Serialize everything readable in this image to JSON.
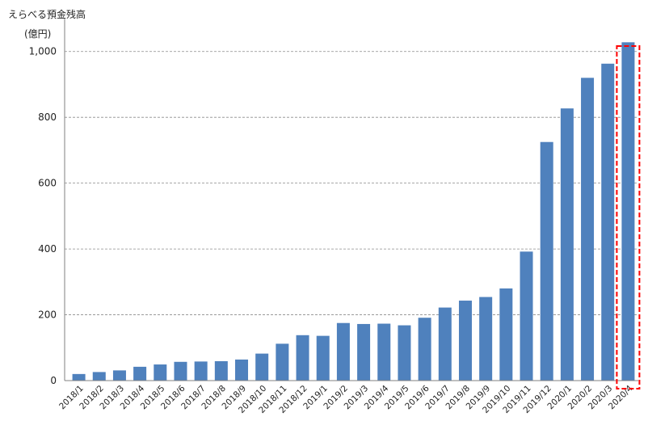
{
  "chart_data": {
    "type": "bar",
    "title": "",
    "ylabel": "えらべる預金残高",
    "yunit": "(億円)",
    "xlabel": "",
    "ylim": [
      0,
      1100
    ],
    "yticks": [
      0,
      200,
      400,
      600,
      800,
      1000
    ],
    "ytick_labels": [
      "0",
      "200",
      "400",
      "600",
      "800",
      "1,000"
    ],
    "grid": "horizontal dashed",
    "bar_color": "#4f81bd",
    "highlight_color": "#ff0000",
    "highlight_category": "2020/4",
    "categories": [
      "2018/1",
      "2018/2",
      "2018/3",
      "2018/4",
      "2018/5",
      "2018/6",
      "2018/7",
      "2018/8",
      "2018/9",
      "2018/10",
      "2018/11",
      "2018/12",
      "2019/1",
      "2019/2",
      "2019/3",
      "2019/4",
      "2019/5",
      "2019/6",
      "2019/7",
      "2019/8",
      "2019/9",
      "2019/10",
      "2019/11",
      "2019/12",
      "2020/1",
      "2020/2",
      "2020/3",
      "2020/4"
    ],
    "values": [
      20,
      26,
      31,
      42,
      49,
      57,
      58,
      59,
      64,
      82,
      112,
      138,
      136,
      175,
      172,
      173,
      168,
      191,
      222,
      243,
      254,
      280,
      392,
      725,
      827,
      920,
      963,
      1028
    ]
  }
}
